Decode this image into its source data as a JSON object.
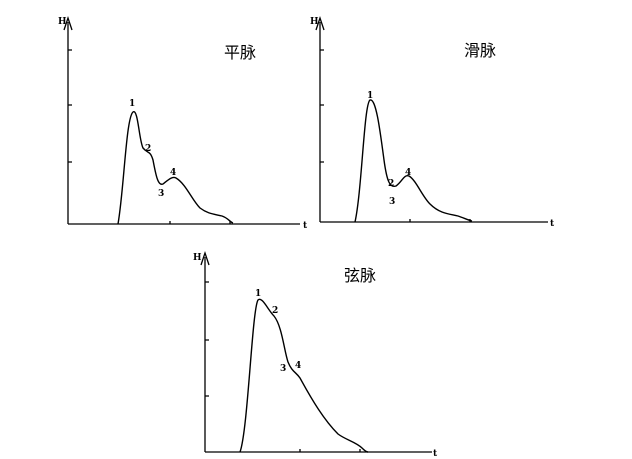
{
  "panels": [
    {
      "title": "平脉",
      "y_axis_label": "H",
      "x_axis_label": "t",
      "point_labels": [
        "1",
        "2",
        "3",
        "4"
      ]
    },
    {
      "title": "滑脉",
      "y_axis_label": "H",
      "x_axis_label": "t",
      "point_labels": [
        "1",
        "2",
        "3",
        "4"
      ]
    },
    {
      "title": "弦脉",
      "y_axis_label": "H",
      "x_axis_label": "t",
      "point_labels": [
        "1",
        "2",
        "3",
        "4"
      ]
    }
  ]
}
